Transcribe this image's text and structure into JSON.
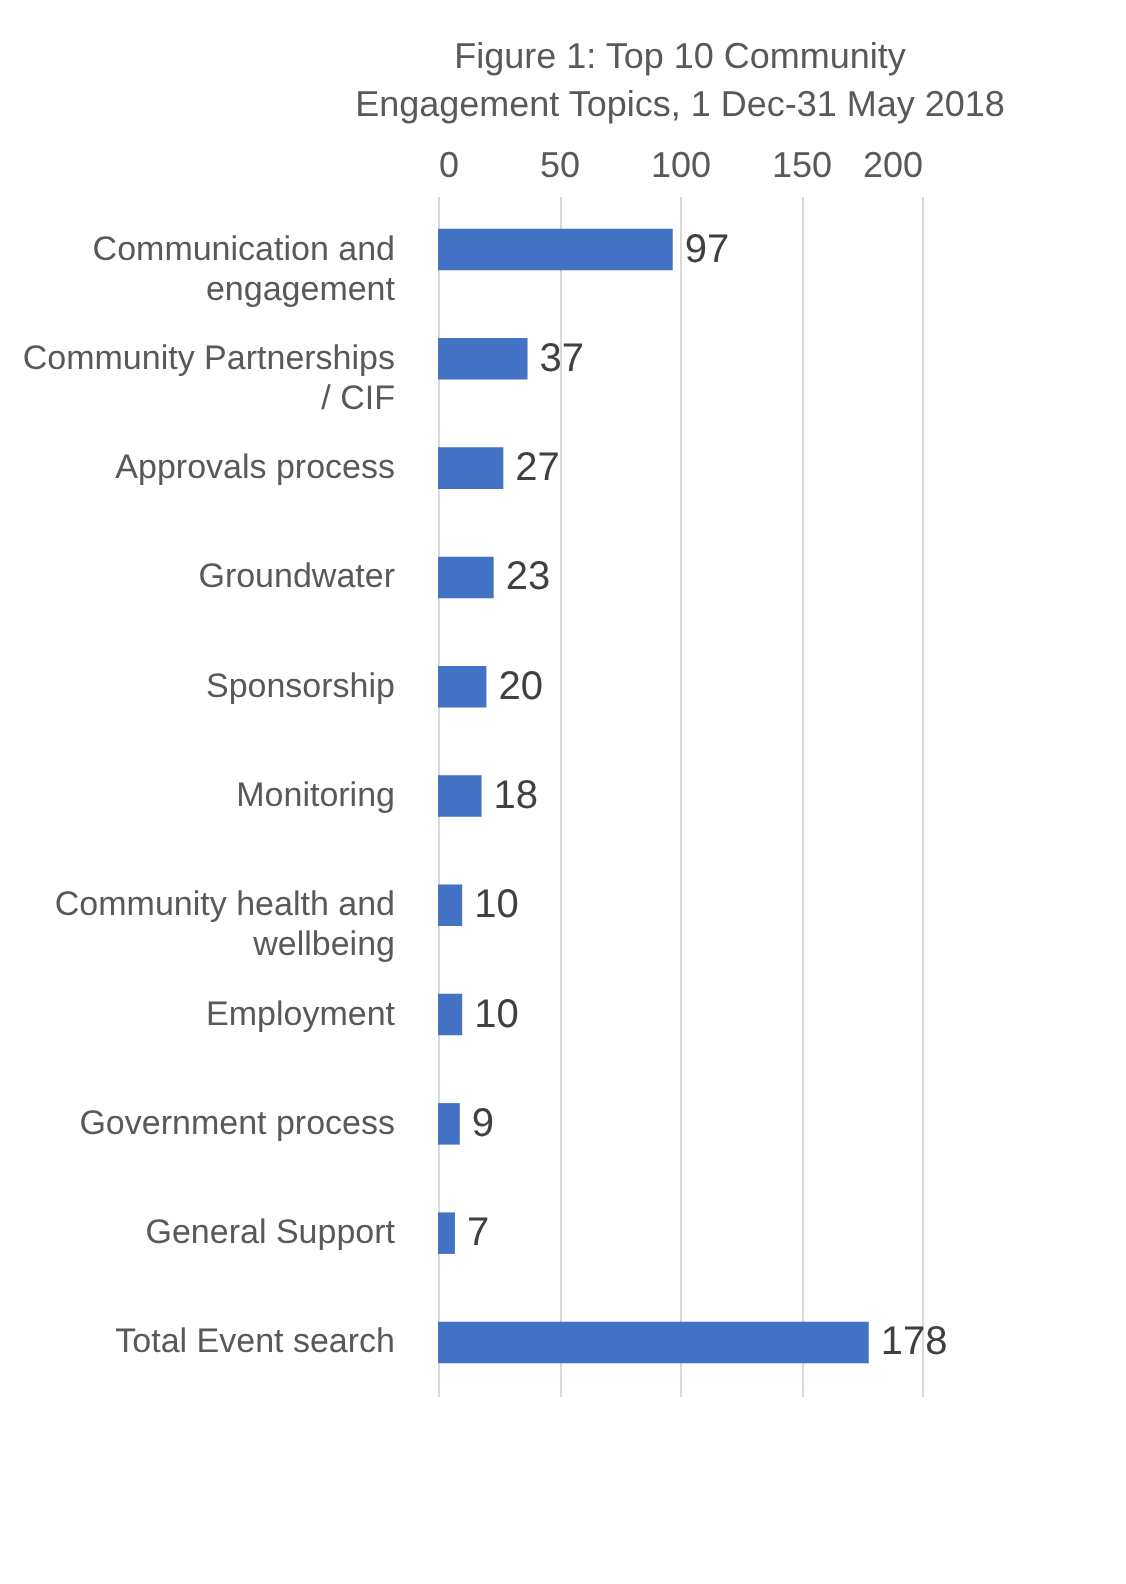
{
  "chart_data": {
    "type": "bar",
    "orientation": "horizontal",
    "title": "Figure 1: Top 10 Community Engagement Topics, 1 Dec-31 May 2018",
    "categories": [
      "Communication and engagement",
      "Community Partnerships / CIF",
      "Approvals process",
      "Groundwater",
      "Sponsorship",
      "Monitoring",
      "Community health and wellbeing",
      "Employment",
      "Government process",
      "General Support",
      "Total Event search"
    ],
    "values": [
      97,
      37,
      27,
      23,
      20,
      18,
      10,
      10,
      9,
      7,
      178
    ],
    "color": "#4472c4",
    "xlim": [
      0,
      200
    ],
    "xticks": [
      0,
      50,
      100,
      150,
      200
    ],
    "grid": "x",
    "data_labels": true
  }
}
